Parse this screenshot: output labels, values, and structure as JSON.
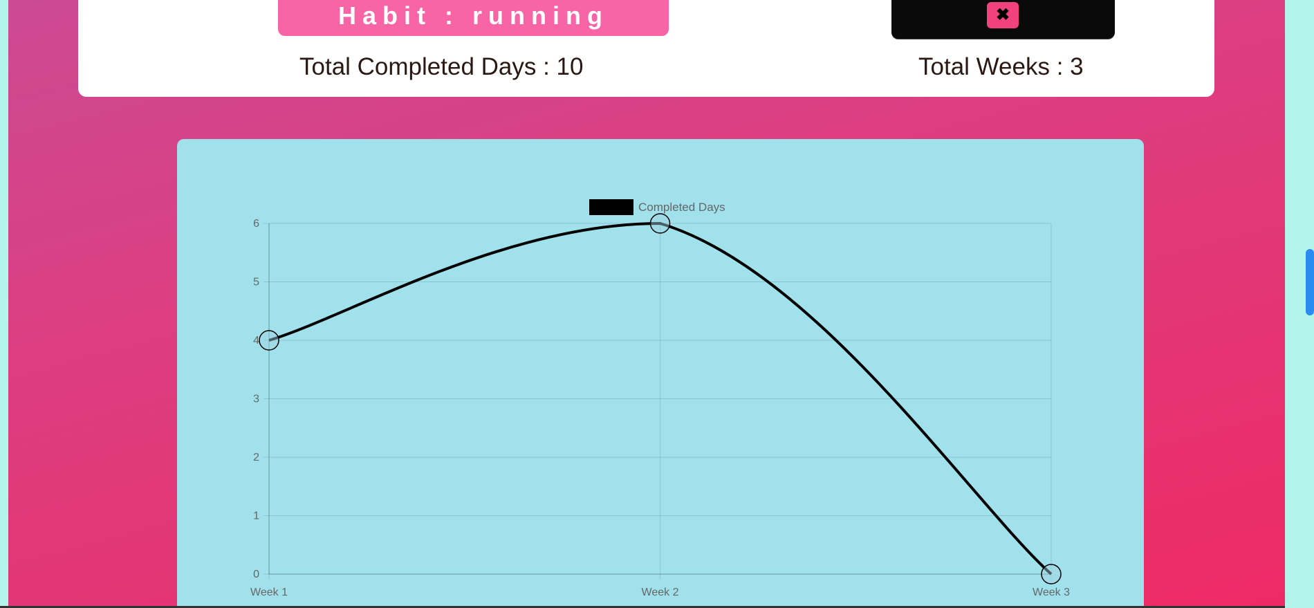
{
  "habit": {
    "title": "Habit : running",
    "close_icon": "close-icon",
    "close_glyph": "✖"
  },
  "stats": {
    "completed_label": "Total Completed Days : 10",
    "weeks_label": "Total Weeks : 3"
  },
  "colors": {
    "page_bg": "#b2f5ea",
    "gradient_top": "#cc4a93",
    "gradient_bottom": "#ee2a66",
    "habit_title_bg": "#f865a7",
    "close_button_bg": "#f2427d",
    "chart_bg": "#a0e1ec",
    "line": "#000000",
    "scrollbar": "#2a8cf0"
  },
  "chart_data": {
    "type": "line",
    "categories": [
      "Week 1",
      "Week 2",
      "Week 3"
    ],
    "series": [
      {
        "name": "Completed Days",
        "values": [
          4,
          6,
          0
        ]
      }
    ],
    "ylim": [
      0,
      6
    ],
    "yticks": [
      0,
      1,
      2,
      3,
      4,
      5,
      6
    ],
    "grid": true,
    "legend": "top-center",
    "smooth": true
  }
}
